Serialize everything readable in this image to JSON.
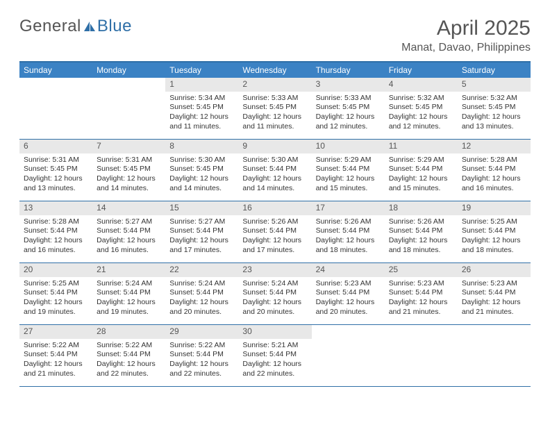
{
  "logo": {
    "part1": "General",
    "part2": "Blue"
  },
  "title": "April 2025",
  "location": "Manat, Davao, Philippines",
  "colors": {
    "header_bg": "#3b82c4",
    "border": "#2f6fa7",
    "daynum_bg": "#e8e8e8",
    "text": "#333333",
    "muted": "#555555"
  },
  "day_names": [
    "Sunday",
    "Monday",
    "Tuesday",
    "Wednesday",
    "Thursday",
    "Friday",
    "Saturday"
  ],
  "weeks": [
    [
      null,
      null,
      {
        "n": "1",
        "sr": "Sunrise: 5:34 AM",
        "ss": "Sunset: 5:45 PM",
        "dl": "Daylight: 12 hours and 11 minutes."
      },
      {
        "n": "2",
        "sr": "Sunrise: 5:33 AM",
        "ss": "Sunset: 5:45 PM",
        "dl": "Daylight: 12 hours and 11 minutes."
      },
      {
        "n": "3",
        "sr": "Sunrise: 5:33 AM",
        "ss": "Sunset: 5:45 PM",
        "dl": "Daylight: 12 hours and 12 minutes."
      },
      {
        "n": "4",
        "sr": "Sunrise: 5:32 AM",
        "ss": "Sunset: 5:45 PM",
        "dl": "Daylight: 12 hours and 12 minutes."
      },
      {
        "n": "5",
        "sr": "Sunrise: 5:32 AM",
        "ss": "Sunset: 5:45 PM",
        "dl": "Daylight: 12 hours and 13 minutes."
      }
    ],
    [
      {
        "n": "6",
        "sr": "Sunrise: 5:31 AM",
        "ss": "Sunset: 5:45 PM",
        "dl": "Daylight: 12 hours and 13 minutes."
      },
      {
        "n": "7",
        "sr": "Sunrise: 5:31 AM",
        "ss": "Sunset: 5:45 PM",
        "dl": "Daylight: 12 hours and 14 minutes."
      },
      {
        "n": "8",
        "sr": "Sunrise: 5:30 AM",
        "ss": "Sunset: 5:45 PM",
        "dl": "Daylight: 12 hours and 14 minutes."
      },
      {
        "n": "9",
        "sr": "Sunrise: 5:30 AM",
        "ss": "Sunset: 5:44 PM",
        "dl": "Daylight: 12 hours and 14 minutes."
      },
      {
        "n": "10",
        "sr": "Sunrise: 5:29 AM",
        "ss": "Sunset: 5:44 PM",
        "dl": "Daylight: 12 hours and 15 minutes."
      },
      {
        "n": "11",
        "sr": "Sunrise: 5:29 AM",
        "ss": "Sunset: 5:44 PM",
        "dl": "Daylight: 12 hours and 15 minutes."
      },
      {
        "n": "12",
        "sr": "Sunrise: 5:28 AM",
        "ss": "Sunset: 5:44 PM",
        "dl": "Daylight: 12 hours and 16 minutes."
      }
    ],
    [
      {
        "n": "13",
        "sr": "Sunrise: 5:28 AM",
        "ss": "Sunset: 5:44 PM",
        "dl": "Daylight: 12 hours and 16 minutes."
      },
      {
        "n": "14",
        "sr": "Sunrise: 5:27 AM",
        "ss": "Sunset: 5:44 PM",
        "dl": "Daylight: 12 hours and 16 minutes."
      },
      {
        "n": "15",
        "sr": "Sunrise: 5:27 AM",
        "ss": "Sunset: 5:44 PM",
        "dl": "Daylight: 12 hours and 17 minutes."
      },
      {
        "n": "16",
        "sr": "Sunrise: 5:26 AM",
        "ss": "Sunset: 5:44 PM",
        "dl": "Daylight: 12 hours and 17 minutes."
      },
      {
        "n": "17",
        "sr": "Sunrise: 5:26 AM",
        "ss": "Sunset: 5:44 PM",
        "dl": "Daylight: 12 hours and 18 minutes."
      },
      {
        "n": "18",
        "sr": "Sunrise: 5:26 AM",
        "ss": "Sunset: 5:44 PM",
        "dl": "Daylight: 12 hours and 18 minutes."
      },
      {
        "n": "19",
        "sr": "Sunrise: 5:25 AM",
        "ss": "Sunset: 5:44 PM",
        "dl": "Daylight: 12 hours and 18 minutes."
      }
    ],
    [
      {
        "n": "20",
        "sr": "Sunrise: 5:25 AM",
        "ss": "Sunset: 5:44 PM",
        "dl": "Daylight: 12 hours and 19 minutes."
      },
      {
        "n": "21",
        "sr": "Sunrise: 5:24 AM",
        "ss": "Sunset: 5:44 PM",
        "dl": "Daylight: 12 hours and 19 minutes."
      },
      {
        "n": "22",
        "sr": "Sunrise: 5:24 AM",
        "ss": "Sunset: 5:44 PM",
        "dl": "Daylight: 12 hours and 20 minutes."
      },
      {
        "n": "23",
        "sr": "Sunrise: 5:24 AM",
        "ss": "Sunset: 5:44 PM",
        "dl": "Daylight: 12 hours and 20 minutes."
      },
      {
        "n": "24",
        "sr": "Sunrise: 5:23 AM",
        "ss": "Sunset: 5:44 PM",
        "dl": "Daylight: 12 hours and 20 minutes."
      },
      {
        "n": "25",
        "sr": "Sunrise: 5:23 AM",
        "ss": "Sunset: 5:44 PM",
        "dl": "Daylight: 12 hours and 21 minutes."
      },
      {
        "n": "26",
        "sr": "Sunrise: 5:23 AM",
        "ss": "Sunset: 5:44 PM",
        "dl": "Daylight: 12 hours and 21 minutes."
      }
    ],
    [
      {
        "n": "27",
        "sr": "Sunrise: 5:22 AM",
        "ss": "Sunset: 5:44 PM",
        "dl": "Daylight: 12 hours and 21 minutes."
      },
      {
        "n": "28",
        "sr": "Sunrise: 5:22 AM",
        "ss": "Sunset: 5:44 PM",
        "dl": "Daylight: 12 hours and 22 minutes."
      },
      {
        "n": "29",
        "sr": "Sunrise: 5:22 AM",
        "ss": "Sunset: 5:44 PM",
        "dl": "Daylight: 12 hours and 22 minutes."
      },
      {
        "n": "30",
        "sr": "Sunrise: 5:21 AM",
        "ss": "Sunset: 5:44 PM",
        "dl": "Daylight: 12 hours and 22 minutes."
      },
      null,
      null,
      null
    ]
  ]
}
